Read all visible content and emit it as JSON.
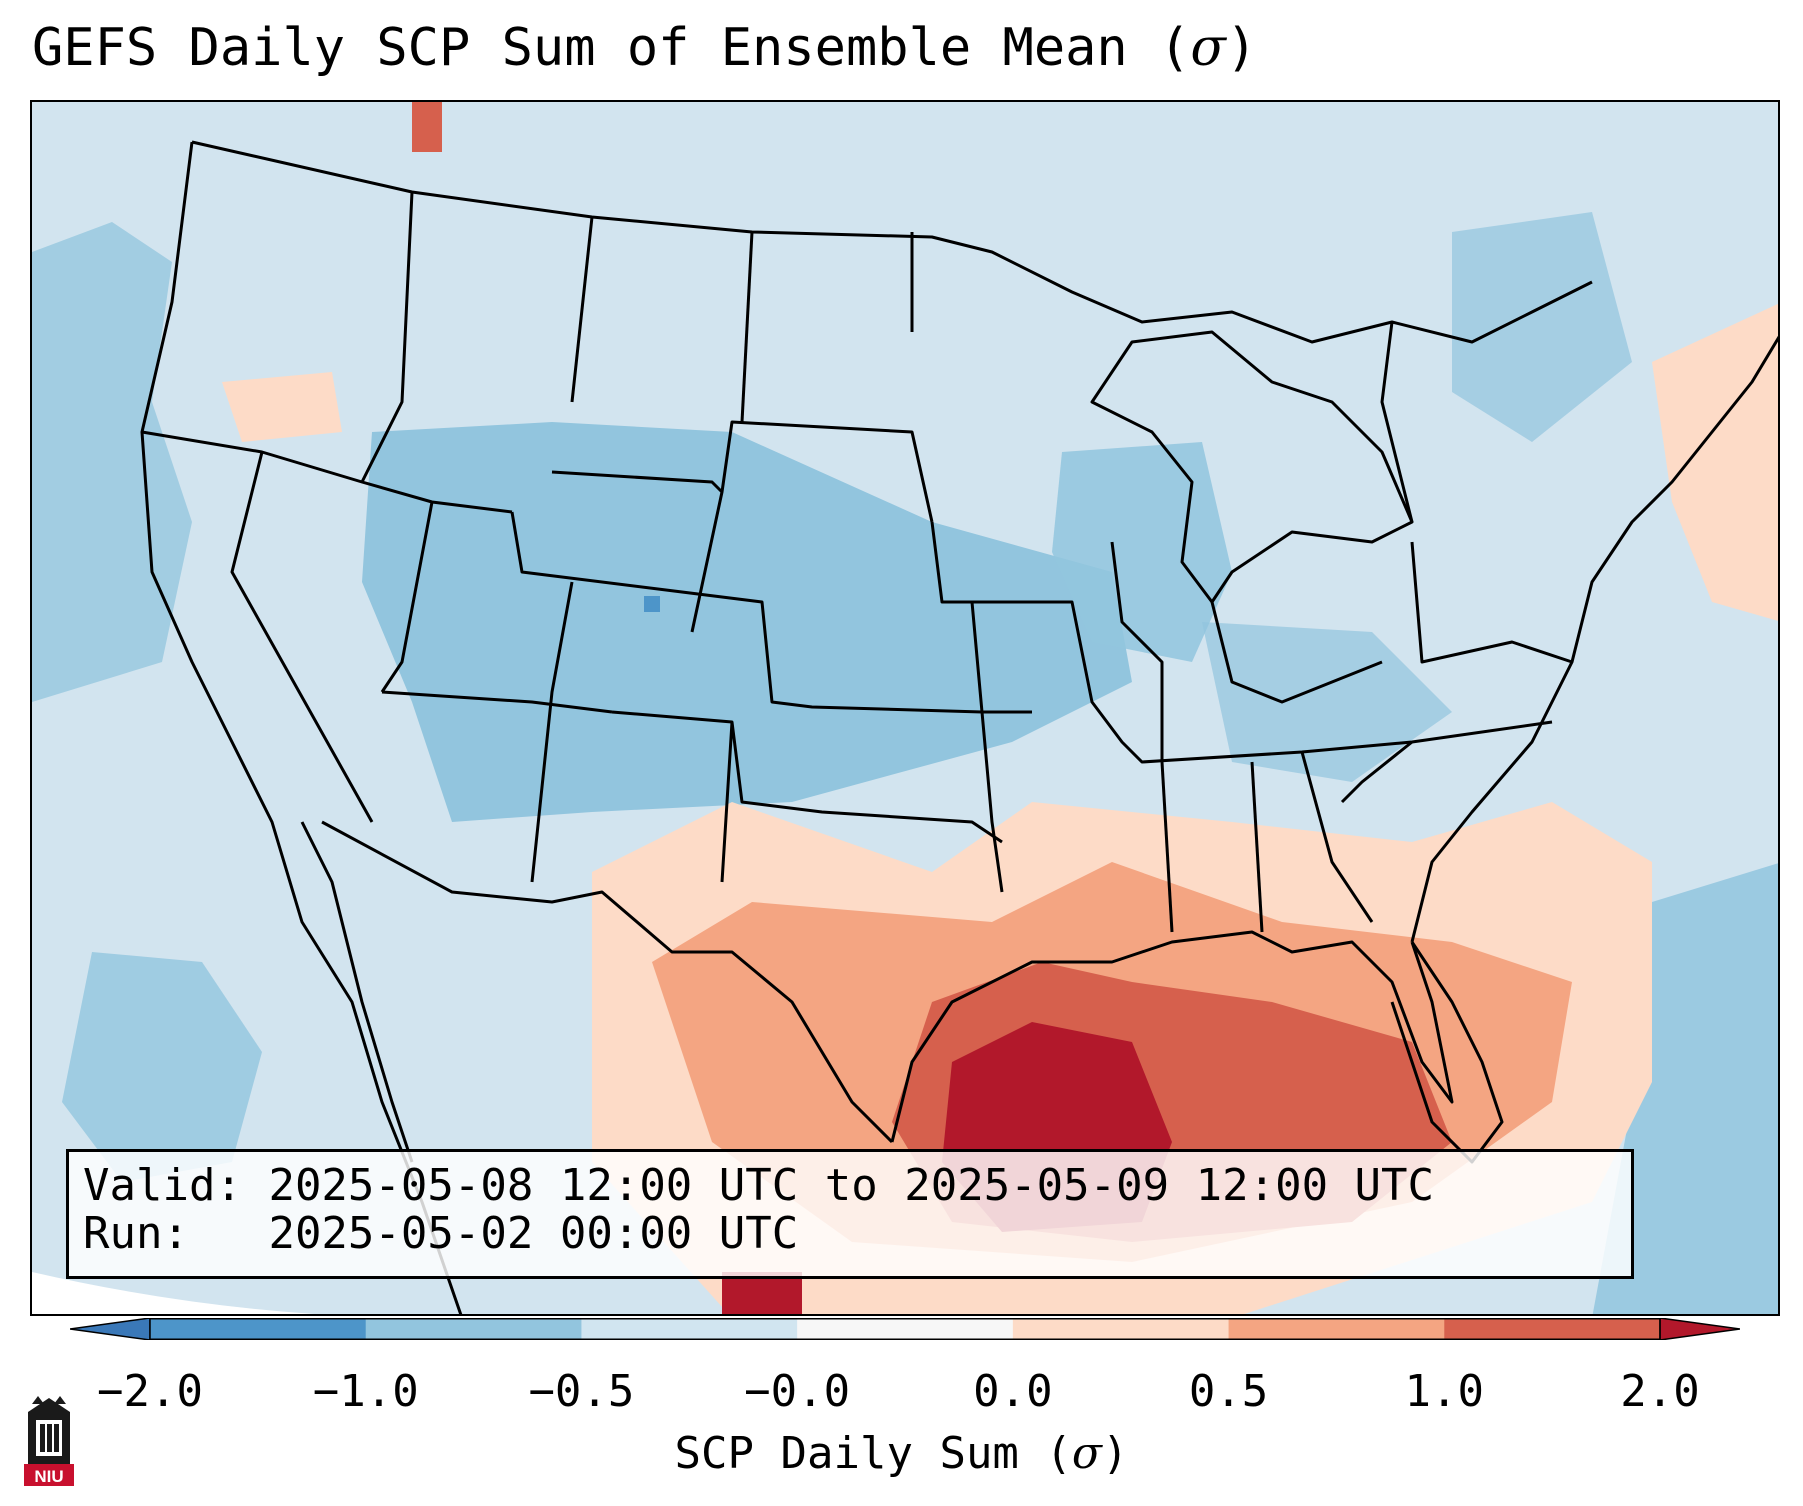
{
  "title": {
    "text": "GEFS Daily SCP Sum of Ensemble Mean (",
    "symbol": "σ",
    "close": ")"
  },
  "info": {
    "valid_label": "Valid:",
    "valid_value": "2025-05-08 12:00 UTC to 2025-05-09 12:00 UTC",
    "run_label": "Run:",
    "run_value": "2025-05-02 00:00 UTC"
  },
  "legend": {
    "label_text": "SCP Daily Sum (",
    "label_symbol": "σ",
    "label_close": ")",
    "ticks": [
      "−2.0",
      "−1.0",
      "−0.5",
      "−0.0",
      "0.0",
      "0.5",
      "1.0",
      "2.0"
    ],
    "bins": [
      {
        "range": "< -2.0",
        "color": "#3a78b8"
      },
      {
        "range": "-2.0 to -1.0",
        "color": "#4d95c9"
      },
      {
        "range": "-1.0 to -0.5",
        "color": "#92c5de"
      },
      {
        "range": "-0.5 to -0.0",
        "color": "#d1e5f0"
      },
      {
        "range": "-0.0 to 0.0",
        "color": "#f7f7f7"
      },
      {
        "range": "0.0 to 0.5",
        "color": "#fddbc7"
      },
      {
        "range": "0.5 to 1.0",
        "color": "#f4a582"
      },
      {
        "range": "1.0 to 2.0",
        "color": "#d6604d"
      },
      {
        "range": "> 2.0",
        "color": "#b2182b"
      }
    ]
  },
  "map": {
    "region": "Contiguous United States",
    "background_color": "#d2e4ef",
    "boundary_color": "#000000",
    "field_colors": {
      "weak_negative": "#d1e5f0",
      "moderate_negative": "#92c5de",
      "strong_negative": "#4d95c9",
      "weak_positive": "#fddbc7",
      "moderate_positive": "#f4a582",
      "strong_positive": "#d6604d",
      "extreme_positive": "#b2182b"
    }
  },
  "logo": {
    "text": "NIU",
    "icon": "university-tower-logo"
  }
}
